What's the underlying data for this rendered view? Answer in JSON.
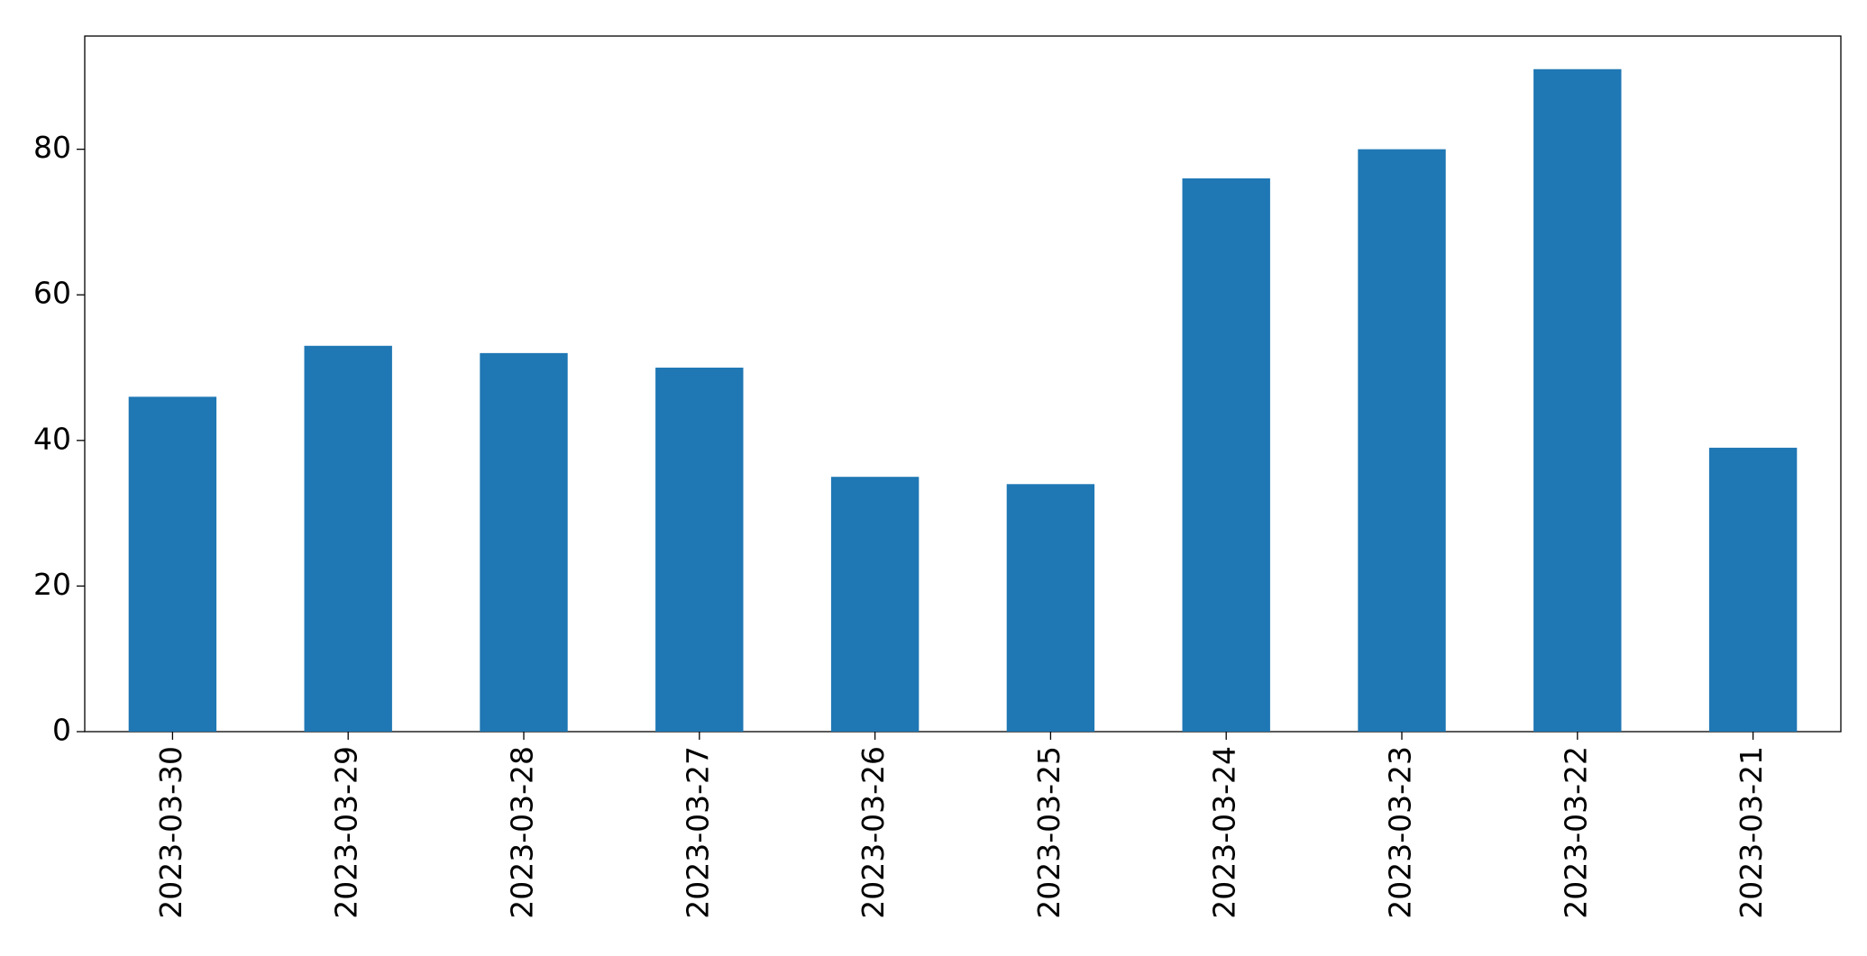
{
  "chart_data": {
    "type": "bar",
    "categories": [
      "2023-03-30",
      "2023-03-29",
      "2023-03-28",
      "2023-03-27",
      "2023-03-26",
      "2023-03-25",
      "2023-03-24",
      "2023-03-23",
      "2023-03-22",
      "2023-03-21"
    ],
    "values": [
      46,
      53,
      52,
      50,
      35,
      34,
      76,
      80,
      91,
      39
    ],
    "color": "#1f77b4",
    "ylim": [
      0,
      95.55
    ],
    "yticks": [
      0,
      20,
      40,
      60,
      80
    ],
    "grid": false
  }
}
